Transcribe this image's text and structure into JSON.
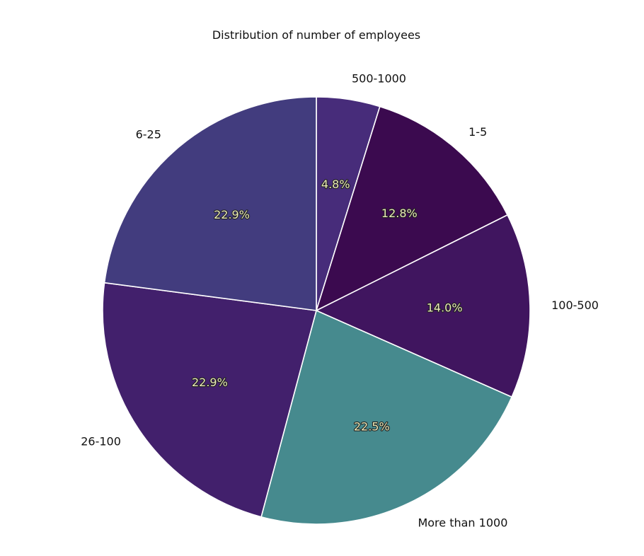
{
  "chart_data": {
    "type": "pie",
    "title": "Distribution of number of employees",
    "start_angle_deg": 90,
    "direction": "clockwise",
    "slices": [
      {
        "label": "500-1000",
        "value": 4.8,
        "pct_label": "4.8%",
        "color": "#472c7a"
      },
      {
        "label": "1-5",
        "value": 12.8,
        "pct_label": "12.8%",
        "color": "#3b0a4f"
      },
      {
        "label": "100-500",
        "value": 14.0,
        "pct_label": "14.0%",
        "color": "#40155f"
      },
      {
        "label": "More than 1000",
        "value": 22.5,
        "pct_label": "22.5%",
        "color": "#468a8e"
      },
      {
        "label": "26-100",
        "value": 22.9,
        "pct_label": "22.9%",
        "color": "#42206c"
      },
      {
        "label": "6-25",
        "value": 22.9,
        "pct_label": "22.9%",
        "color": "#423c7e"
      }
    ],
    "slice_edge_color": "#ffffff"
  }
}
